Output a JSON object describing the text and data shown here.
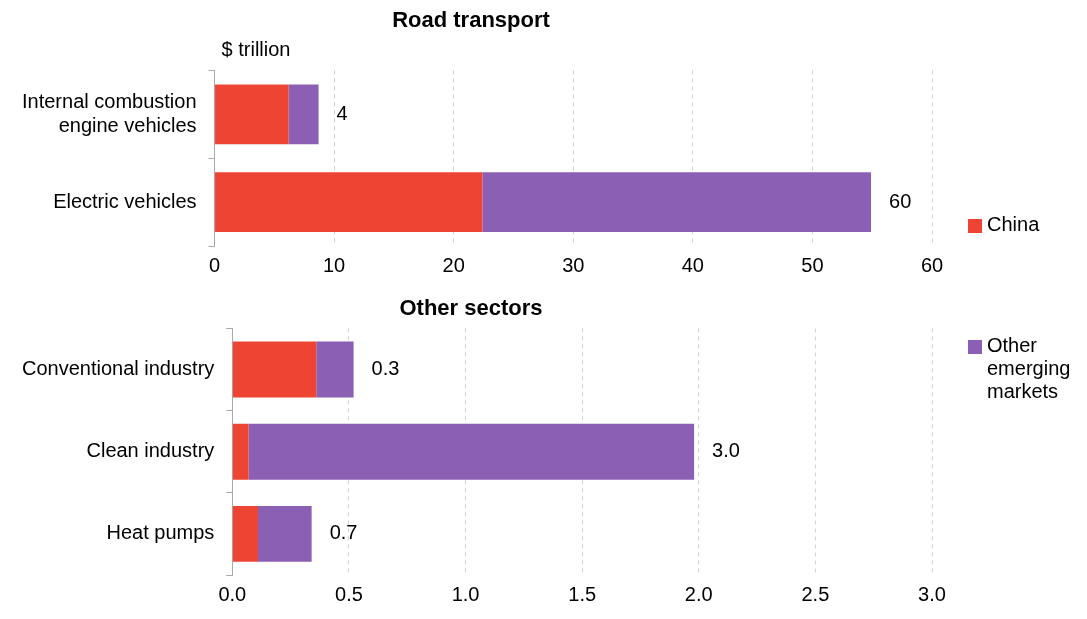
{
  "chart_data": [
    {
      "type": "bar",
      "title": "Road transport",
      "xlabel": "$ trillion",
      "orientation": "horizontal",
      "stacked": true,
      "categories": [
        "Internal combustion engine vehicles",
        "Electric vehicles"
      ],
      "series": [
        {
          "name": "China",
          "color": "#ee4434",
          "values": [
            6.2,
            22.4
          ]
        },
        {
          "color": "#8a5fb4",
          "values": [
            2.5,
            32.5
          ]
        }
      ],
      "annotations": [
        "4",
        "60"
      ],
      "xlim": [
        0,
        60
      ],
      "xticks": [
        0,
        10,
        20,
        30,
        40,
        50,
        60
      ],
      "grid": "x",
      "legend": "bottom right"
    },
    {
      "type": "bar",
      "title": "Other sectors",
      "orientation": "horizontal",
      "stacked": true,
      "categories": [
        "Conventional industry",
        "Clean industry",
        "Heat pumps"
      ],
      "series": [
        {
          "color": "#ee4434",
          "values": [
            0.36,
            0.07,
            0.11
          ]
        },
        {
          "name": "Other emerging markets",
          "color": "#8a5fb4",
          "values": [
            0.16,
            1.91,
            0.23
          ]
        }
      ],
      "annotations": [
        "0.3",
        "3.0",
        "0.7"
      ],
      "xlim": [
        0,
        3
      ],
      "xticks": [
        {
          "value": 0,
          "label": "0.0"
        },
        {
          "value": 0.5,
          "label": "0.5"
        },
        {
          "value": 1,
          "label": "1.0"
        },
        {
          "value": 1.5,
          "label": "1.5"
        },
        {
          "value": 2,
          "label": "2.0"
        },
        {
          "value": 2.5,
          "label": "2.5"
        },
        {
          "value": 3,
          "label": "3.0"
        }
      ],
      "grid": "x",
      "legend": "top right"
    }
  ]
}
